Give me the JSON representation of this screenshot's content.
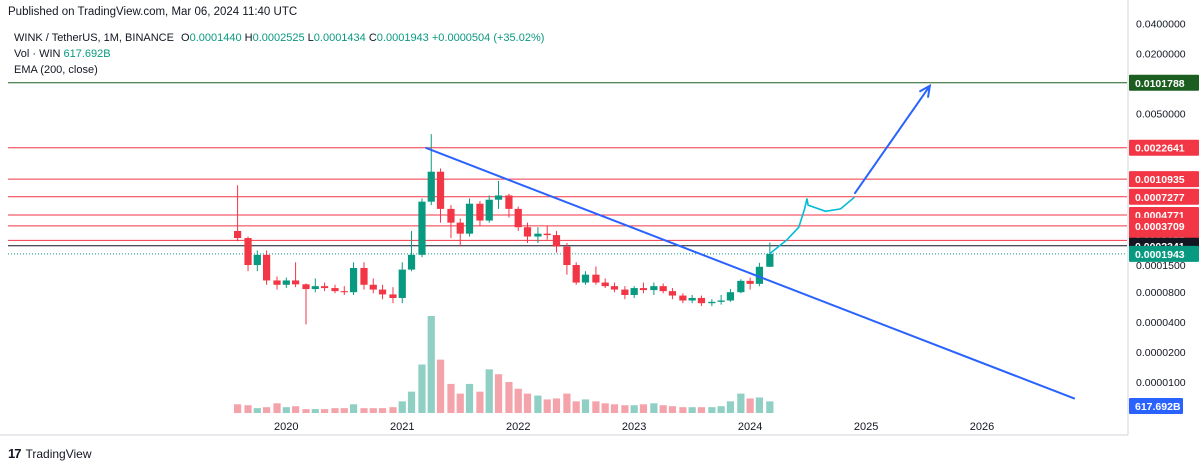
{
  "header": {
    "published": "Published on TradingView.com, Mar 06, 2024 11:40 UTC"
  },
  "legend": {
    "symbol": "WINK / TetherUS, 1M, BINANCE",
    "o_label": "O",
    "o_value": "0.0001440",
    "h_label": "H",
    "h_value": "0.0002525",
    "l_label": "L",
    "l_value": "0.0001434",
    "c_label": "C",
    "c_value": "0.0001943",
    "change": "+0.0000504 (+35.02%)",
    "volume": "Vol · WIN",
    "volume_value": "617.692B",
    "ema": "EMA (200, close)"
  },
  "footer": {
    "brand": "TradingView",
    "logo": "17"
  },
  "chart_data": {
    "type": "candlestick",
    "scale": "log",
    "y_axis_labels": [
      "0.0400000",
      "0.0200000",
      "0.0050000",
      "0.0010935",
      "0.0007277",
      "0.0004771",
      "0.0003709",
      "0.0002655",
      "0.0001500",
      "0.0000800",
      "0.0000400",
      "0.0000200",
      "0.0000100"
    ],
    "x_axis_labels": [
      "2020",
      "2021",
      "2022",
      "2023",
      "2024",
      "2025",
      "2026"
    ],
    "ylim": [
      5e-06,
      0.05
    ],
    "price_levels": [
      {
        "value": 0.0101788,
        "label": "0.0101788",
        "color": "#1b5e20"
      },
      {
        "value": 0.0022641,
        "label": "0.0022641",
        "color": "#f23645"
      },
      {
        "value": 0.0010935,
        "label": "0.0010935",
        "color": "#f23645"
      },
      {
        "value": 0.0007277,
        "label": "0.0007277",
        "color": "#f23645"
      },
      {
        "value": 0.0004771,
        "label": "0.0004771",
        "color": "#f23645"
      },
      {
        "value": 0.0003709,
        "label": "0.0003709",
        "color": "#f23645"
      },
      {
        "value": 0.0002655,
        "label": "0.0002655",
        "color": "#f23645"
      },
      {
        "value": 0.0002341,
        "label": "0.0002341",
        "color": "#131722"
      }
    ],
    "last_price": {
      "value": 0.0001943,
      "label": "0.0001943",
      "color": "#089981"
    },
    "volume_label": {
      "label": "617.692B",
      "color": "#2962ff"
    },
    "candles": [
      {
        "t": 2019.58,
        "o": 0.00033,
        "h": 0.00095,
        "l": 0.00026,
        "c": 0.00028
      },
      {
        "t": 2019.67,
        "o": 0.00028,
        "h": 0.00029,
        "l": 0.00013,
        "c": 0.00015
      },
      {
        "t": 2019.75,
        "o": 0.00015,
        "h": 0.00021,
        "l": 0.00013,
        "c": 0.00019
      },
      {
        "t": 2019.83,
        "o": 0.00019,
        "h": 0.00021,
        "l": 9.5e-05,
        "c": 0.000105
      },
      {
        "t": 2019.92,
        "o": 0.000105,
        "h": 0.000115,
        "l": 8.5e-05,
        "c": 9.5e-05
      },
      {
        "t": 2020.0,
        "o": 9.5e-05,
        "h": 0.000112,
        "l": 8.8e-05,
        "c": 0.000105
      },
      {
        "t": 2020.08,
        "o": 0.000105,
        "h": 0.00016,
        "l": 9e-05,
        "c": 9.6e-05
      },
      {
        "t": 2020.17,
        "o": 9.6e-05,
        "h": 9.8e-05,
        "l": 3.8e-05,
        "c": 8.6e-05
      },
      {
        "t": 2020.25,
        "o": 8.6e-05,
        "h": 0.00011,
        "l": 8e-05,
        "c": 9.2e-05
      },
      {
        "t": 2020.33,
        "o": 9.2e-05,
        "h": 0.0001,
        "l": 8.2e-05,
        "c": 8.8e-05
      },
      {
        "t": 2020.42,
        "o": 8.8e-05,
        "h": 9.5e-05,
        "l": 7.8e-05,
        "c": 8.2e-05
      },
      {
        "t": 2020.5,
        "o": 8.2e-05,
        "h": 9.2e-05,
        "l": 7.5e-05,
        "c": 8e-05
      },
      {
        "t": 2020.58,
        "o": 8e-05,
        "h": 0.00016,
        "l": 7.5e-05,
        "c": 0.00014
      },
      {
        "t": 2020.67,
        "o": 0.00014,
        "h": 0.00016,
        "l": 8.5e-05,
        "c": 9.5e-05
      },
      {
        "t": 2020.75,
        "o": 9.5e-05,
        "h": 0.00011,
        "l": 7.8e-05,
        "c": 8.5e-05
      },
      {
        "t": 2020.83,
        "o": 8.5e-05,
        "h": 9.5e-05,
        "l": 6.8e-05,
        "c": 7.6e-05
      },
      {
        "t": 2020.92,
        "o": 7.6e-05,
        "h": 9e-05,
        "l": 6.2e-05,
        "c": 7e-05
      },
      {
        "t": 2021.0,
        "o": 7e-05,
        "h": 0.00016,
        "l": 6.2e-05,
        "c": 0.000135
      },
      {
        "t": 2021.08,
        "o": 0.000135,
        "h": 0.00033,
        "l": 0.00013,
        "c": 0.00019
      },
      {
        "t": 2021.17,
        "o": 0.00019,
        "h": 0.0007,
        "l": 0.00018,
        "c": 0.00065
      },
      {
        "t": 2021.25,
        "o": 0.00065,
        "h": 0.0031,
        "l": 0.0006,
        "c": 0.0013
      },
      {
        "t": 2021.33,
        "o": 0.0013,
        "h": 0.0014,
        "l": 0.0004,
        "c": 0.00055
      },
      {
        "t": 2021.42,
        "o": 0.00055,
        "h": 0.0006,
        "l": 0.00028,
        "c": 0.0004
      },
      {
        "t": 2021.5,
        "o": 0.0004,
        "h": 0.00044,
        "l": 0.00023,
        "c": 0.00031
      },
      {
        "t": 2021.58,
        "o": 0.00031,
        "h": 0.0007,
        "l": 0.00029,
        "c": 0.00062
      },
      {
        "t": 2021.67,
        "o": 0.00062,
        "h": 0.00066,
        "l": 0.00037,
        "c": 0.00042
      },
      {
        "t": 2021.75,
        "o": 0.00042,
        "h": 0.00075,
        "l": 0.0004,
        "c": 0.00068
      },
      {
        "t": 2021.83,
        "o": 0.00068,
        "h": 0.00105,
        "l": 0.00055,
        "c": 0.00075
      },
      {
        "t": 2021.92,
        "o": 0.00075,
        "h": 0.00078,
        "l": 0.00045,
        "c": 0.00055
      },
      {
        "t": 2022.0,
        "o": 0.00055,
        "h": 0.00058,
        "l": 0.00033,
        "c": 0.00036
      },
      {
        "t": 2022.08,
        "o": 0.00036,
        "h": 0.0004,
        "l": 0.00025,
        "c": 0.00029
      },
      {
        "t": 2022.17,
        "o": 0.00029,
        "h": 0.00036,
        "l": 0.00025,
        "c": 0.00031
      },
      {
        "t": 2022.25,
        "o": 0.00031,
        "h": 0.00037,
        "l": 0.00027,
        "c": 0.0003
      },
      {
        "t": 2022.33,
        "o": 0.0003,
        "h": 0.00033,
        "l": 0.0002,
        "c": 0.00023
      },
      {
        "t": 2022.42,
        "o": 0.00023,
        "h": 0.00025,
        "l": 0.00012,
        "c": 0.00015
      },
      {
        "t": 2022.5,
        "o": 0.00015,
        "h": 0.00016,
        "l": 9.5e-05,
        "c": 0.0001
      },
      {
        "t": 2022.58,
        "o": 0.0001,
        "h": 0.00013,
        "l": 9.5e-05,
        "c": 0.00012
      },
      {
        "t": 2022.67,
        "o": 0.00012,
        "h": 0.000145,
        "l": 9.5e-05,
        "c": 0.0001
      },
      {
        "t": 2022.75,
        "o": 0.0001,
        "h": 0.00011,
        "l": 8.8e-05,
        "c": 9.2e-05
      },
      {
        "t": 2022.83,
        "o": 9.2e-05,
        "h": 0.0001,
        "l": 8e-05,
        "c": 8.5e-05
      },
      {
        "t": 2022.92,
        "o": 8.5e-05,
        "h": 9.2e-05,
        "l": 6.8e-05,
        "c": 7.5e-05
      },
      {
        "t": 2023.0,
        "o": 7.5e-05,
        "h": 9.2e-05,
        "l": 7e-05,
        "c": 8.8e-05
      },
      {
        "t": 2023.08,
        "o": 8.8e-05,
        "h": 0.0001,
        "l": 7.8e-05,
        "c": 8.4e-05
      },
      {
        "t": 2023.17,
        "o": 8.4e-05,
        "h": 0.0001,
        "l": 7.5e-05,
        "c": 9.2e-05
      },
      {
        "t": 2023.25,
        "o": 9.2e-05,
        "h": 9.8e-05,
        "l": 7.8e-05,
        "c": 8.2e-05
      },
      {
        "t": 2023.33,
        "o": 8.2e-05,
        "h": 8.8e-05,
        "l": 6.8e-05,
        "c": 7.4e-05
      },
      {
        "t": 2023.42,
        "o": 7.4e-05,
        "h": 7.8e-05,
        "l": 6.2e-05,
        "c": 6.6e-05
      },
      {
        "t": 2023.5,
        "o": 6.6e-05,
        "h": 7.5e-05,
        "l": 6.2e-05,
        "c": 7e-05
      },
      {
        "t": 2023.58,
        "o": 7e-05,
        "h": 7.4e-05,
        "l": 5.8e-05,
        "c": 6.2e-05
      },
      {
        "t": 2023.67,
        "o": 6.2e-05,
        "h": 6.8e-05,
        "l": 5.8e-05,
        "c": 6.4e-05
      },
      {
        "t": 2023.75,
        "o": 6.4e-05,
        "h": 7.5e-05,
        "l": 6e-05,
        "c": 6.6e-05
      },
      {
        "t": 2023.83,
        "o": 6.6e-05,
        "h": 8.6e-05,
        "l": 6.4e-05,
        "c": 8e-05
      },
      {
        "t": 2023.92,
        "o": 8e-05,
        "h": 0.000108,
        "l": 7.8e-05,
        "c": 0.000104
      },
      {
        "t": 2024.0,
        "o": 0.000104,
        "h": 0.000112,
        "l": 8.5e-05,
        "c": 9.7e-05
      },
      {
        "t": 2024.08,
        "o": 9.7e-05,
        "h": 0.000158,
        "l": 9.2e-05,
        "c": 0.000144
      },
      {
        "t": 2024.17,
        "o": 0.000144,
        "h": 0.0002525,
        "l": 0.0001434,
        "c": 0.0001943
      }
    ],
    "volumes": [
      {
        "t": 2019.58,
        "v": 0.09,
        "up": false
      },
      {
        "t": 2019.67,
        "v": 0.08,
        "up": false
      },
      {
        "t": 2019.75,
        "v": 0.05,
        "up": true
      },
      {
        "t": 2019.83,
        "v": 0.06,
        "up": false
      },
      {
        "t": 2019.92,
        "v": 0.1,
        "up": false
      },
      {
        "t": 2020.0,
        "v": 0.06,
        "up": true
      },
      {
        "t": 2020.08,
        "v": 0.07,
        "up": false
      },
      {
        "t": 2020.17,
        "v": 0.04,
        "up": false
      },
      {
        "t": 2020.25,
        "v": 0.04,
        "up": true
      },
      {
        "t": 2020.33,
        "v": 0.04,
        "up": false
      },
      {
        "t": 2020.42,
        "v": 0.05,
        "up": false
      },
      {
        "t": 2020.5,
        "v": 0.05,
        "up": false
      },
      {
        "t": 2020.58,
        "v": 0.09,
        "up": true
      },
      {
        "t": 2020.67,
        "v": 0.05,
        "up": false
      },
      {
        "t": 2020.75,
        "v": 0.05,
        "up": false
      },
      {
        "t": 2020.83,
        "v": 0.05,
        "up": false
      },
      {
        "t": 2020.92,
        "v": 0.06,
        "up": false
      },
      {
        "t": 2021.0,
        "v": 0.12,
        "up": true
      },
      {
        "t": 2021.08,
        "v": 0.22,
        "up": true
      },
      {
        "t": 2021.17,
        "v": 0.5,
        "up": true
      },
      {
        "t": 2021.25,
        "v": 1.0,
        "up": true
      },
      {
        "t": 2021.33,
        "v": 0.55,
        "up": false
      },
      {
        "t": 2021.42,
        "v": 0.3,
        "up": false
      },
      {
        "t": 2021.5,
        "v": 0.2,
        "up": false
      },
      {
        "t": 2021.58,
        "v": 0.3,
        "up": true
      },
      {
        "t": 2021.67,
        "v": 0.22,
        "up": false
      },
      {
        "t": 2021.75,
        "v": 0.45,
        "up": true
      },
      {
        "t": 2021.83,
        "v": 0.4,
        "up": false
      },
      {
        "t": 2021.92,
        "v": 0.32,
        "up": false
      },
      {
        "t": 2022.0,
        "v": 0.25,
        "up": false
      },
      {
        "t": 2022.08,
        "v": 0.2,
        "up": false
      },
      {
        "t": 2022.17,
        "v": 0.18,
        "up": true
      },
      {
        "t": 2022.25,
        "v": 0.14,
        "up": false
      },
      {
        "t": 2022.33,
        "v": 0.15,
        "up": false
      },
      {
        "t": 2022.42,
        "v": 0.2,
        "up": false
      },
      {
        "t": 2022.5,
        "v": 0.12,
        "up": false
      },
      {
        "t": 2022.58,
        "v": 0.14,
        "up": true
      },
      {
        "t": 2022.67,
        "v": 0.12,
        "up": false
      },
      {
        "t": 2022.75,
        "v": 0.1,
        "up": false
      },
      {
        "t": 2022.83,
        "v": 0.09,
        "up": false
      },
      {
        "t": 2022.92,
        "v": 0.08,
        "up": false
      },
      {
        "t": 2023.0,
        "v": 0.08,
        "up": true
      },
      {
        "t": 2023.08,
        "v": 0.09,
        "up": false
      },
      {
        "t": 2023.17,
        "v": 0.1,
        "up": true
      },
      {
        "t": 2023.25,
        "v": 0.08,
        "up": false
      },
      {
        "t": 2023.33,
        "v": 0.07,
        "up": false
      },
      {
        "t": 2023.42,
        "v": 0.06,
        "up": false
      },
      {
        "t": 2023.5,
        "v": 0.06,
        "up": true
      },
      {
        "t": 2023.58,
        "v": 0.06,
        "up": false
      },
      {
        "t": 2023.67,
        "v": 0.06,
        "up": true
      },
      {
        "t": 2023.75,
        "v": 0.07,
        "up": true
      },
      {
        "t": 2023.83,
        "v": 0.12,
        "up": true
      },
      {
        "t": 2023.92,
        "v": 0.2,
        "up": true
      },
      {
        "t": 2024.0,
        "v": 0.15,
        "up": false
      },
      {
        "t": 2024.08,
        "v": 0.16,
        "up": true
      },
      {
        "t": 2024.17,
        "v": 0.12,
        "up": true
      }
    ],
    "trendline": {
      "t1": 2021.2,
      "p1": 0.0022641,
      "t2": 2026.8,
      "p2": 6.8e-06,
      "color": "#2962ff"
    },
    "projection_arrow": {
      "t1": 2024.9,
      "p1": 0.00078,
      "t2": 2025.55,
      "p2": 0.0095,
      "color": "#2962ff"
    },
    "projection_path": [
      {
        "t": 2024.17,
        "p": 0.000195
      },
      {
        "t": 2024.32,
        "p": 0.00027
      },
      {
        "t": 2024.42,
        "p": 0.00036
      },
      {
        "t": 2024.47,
        "p": 0.00055
      },
      {
        "t": 2024.49,
        "p": 0.0007
      },
      {
        "t": 2024.5,
        "p": 0.0006
      },
      {
        "t": 2024.65,
        "p": 0.00052
      },
      {
        "t": 2024.78,
        "p": 0.00055
      },
      {
        "t": 2024.9,
        "p": 0.00072
      }
    ],
    "projection_color": "#00bcd4",
    "colors": {
      "up": "#089981",
      "down": "#f23645",
      "vol_up": "#8fcfc4",
      "vol_down": "#f5a3aa",
      "level_red": "#f23645",
      "level_green": "#1b5e20"
    }
  }
}
